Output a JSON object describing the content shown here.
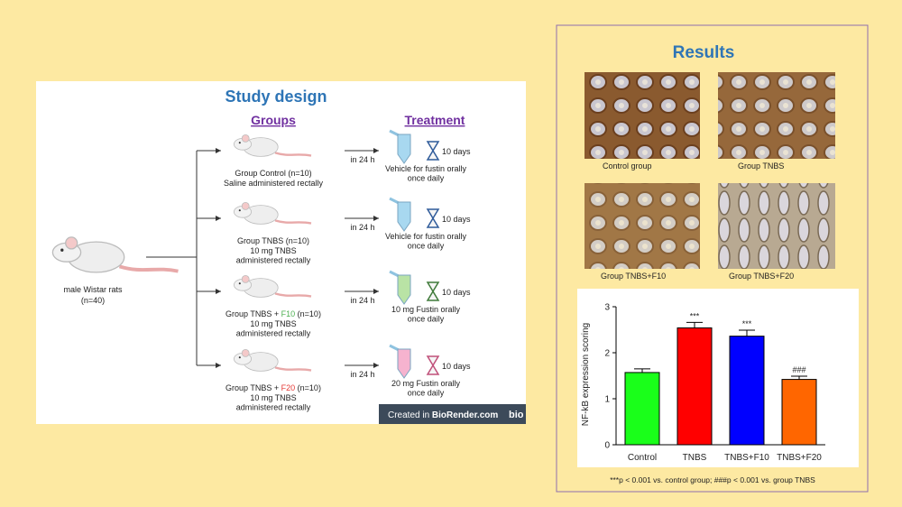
{
  "study_design": {
    "title": "Study design",
    "groups_heading": "Groups",
    "treatment_heading": "Treatment",
    "animals": [
      "male Wistar rats",
      "(n=40)"
    ],
    "source": {
      "label": "Created in",
      "brand": "BioRender.com",
      "logo": "bio"
    },
    "arms": [
      {
        "title": [
          "Group Control (n=10)"
        ],
        "lines": [
          "Saline administered rectally"
        ],
        "delay": "in 24 h",
        "duration": "10 days",
        "treatment": [
          "Vehicle for fustin orally",
          "once daily"
        ],
        "tube_color": "#a8d8f0",
        "glass_color": "#2f5b9a"
      },
      {
        "title": [
          "Group TNBS (n=10)"
        ],
        "lines": [
          "10 mg TNBS",
          "administered rectally"
        ],
        "delay": "in 24 h",
        "duration": "10 days",
        "treatment": [
          "Vehicle for fustin orally",
          "once daily"
        ],
        "tube_color": "#a8d8f0",
        "glass_color": "#2f5b9a"
      },
      {
        "title": [
          "Group TNBS + ",
          "F10",
          " (n=10)"
        ],
        "highlight_color": "#4caf50",
        "lines": [
          "10 mg TNBS",
          "administered rectally"
        ],
        "delay": "in 24 h",
        "duration": "10 days",
        "treatment": [
          "10 mg Fustin orally",
          "once daily"
        ],
        "tube_color": "#b9e3a5",
        "glass_color": "#3f7a3a"
      },
      {
        "title": [
          "Group TNBS + ",
          "F20",
          " (n=10)"
        ],
        "highlight_color": "#e53935",
        "lines": [
          "10 mg TNBS",
          "administered rectally"
        ],
        "delay": "in 24 h",
        "duration": "10 days",
        "treatment": [
          "20 mg Fustin orally",
          "once daily"
        ],
        "tube_color": "#f6b3cf",
        "glass_color": "#c0507a"
      }
    ]
  },
  "results": {
    "title": "Results",
    "images": [
      {
        "caption": "Control group"
      },
      {
        "caption": "Group TNBS"
      },
      {
        "caption": "Group TNBS+F10"
      },
      {
        "caption": "Group TNBS+F20"
      }
    ],
    "footnote": "***p < 0.001 vs. control group; ###p < 0.001 vs. group TNBS"
  },
  "chart_data": {
    "type": "bar",
    "ylabel": "NF-kB expression scoring",
    "categories": [
      "Control",
      "TNBS",
      "TNBS+F10",
      "TNBS+F20"
    ],
    "values": [
      1.57,
      2.54,
      2.36,
      1.42
    ],
    "errors": [
      0.08,
      0.12,
      0.13,
      0.07
    ],
    "annotations": [
      null,
      "***",
      "***",
      "###"
    ],
    "colors": [
      "#1aff1a",
      "#ff0000",
      "#0000ff",
      "#ff6600"
    ],
    "ylim": [
      0,
      3
    ],
    "yticks": [
      0,
      1,
      2,
      3
    ]
  }
}
